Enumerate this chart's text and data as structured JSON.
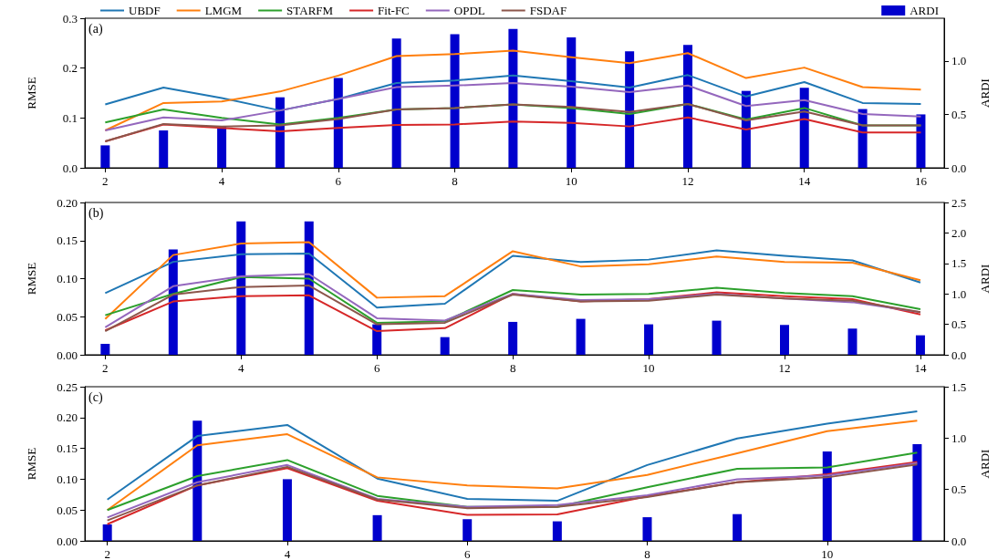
{
  "chart_data": [
    {
      "type": "line",
      "annotations": [
        "(a)"
      ],
      "ylabel": "RMSE",
      "y2label": "ARDI",
      "legend": "top",
      "grid": false,
      "x": [
        2,
        3,
        4,
        5,
        6,
        7,
        8,
        9,
        10,
        11,
        12,
        13,
        14,
        15,
        16
      ],
      "xlim": [
        1.65,
        16.4
      ],
      "xticks": [
        2,
        4,
        6,
        8,
        10,
        12,
        14,
        16
      ],
      "ylim": [
        0,
        0.3
      ],
      "yticks": [
        {
          "value": 0,
          "label": "0.0"
        },
        0.1,
        0.2,
        0.3
      ],
      "y2lim": [
        0,
        1.4
      ],
      "y2ticks": [
        {
          "value": 0,
          "label": "0.0"
        },
        0.5,
        {
          "value": 1,
          "label": "1.0"
        }
      ],
      "series": [
        {
          "name": "UBDF",
          "color": "#1f77b4",
          "values": [
            0.127,
            0.161,
            0.14,
            0.115,
            0.138,
            0.17,
            0.175,
            0.185,
            0.174,
            0.161,
            0.186,
            0.143,
            0.172,
            0.13,
            0.128
          ]
        },
        {
          "name": "LMGM",
          "color": "#ff7f0e",
          "values": [
            0.075,
            0.13,
            0.133,
            0.153,
            0.185,
            0.224,
            0.228,
            0.235,
            0.222,
            0.21,
            0.23,
            0.18,
            0.201,
            0.162,
            0.157
          ]
        },
        {
          "name": "STARFM",
          "color": "#2ca02c",
          "values": [
            0.091,
            0.117,
            0.1,
            0.087,
            0.1,
            0.117,
            0.12,
            0.127,
            0.12,
            0.108,
            0.128,
            0.097,
            0.12,
            0.085,
            0.085
          ]
        },
        {
          "name": "Fit-FC",
          "color": "#d62728",
          "values": [
            0.053,
            0.087,
            0.08,
            0.073,
            0.08,
            0.086,
            0.087,
            0.093,
            0.09,
            0.083,
            0.101,
            0.077,
            0.098,
            0.071,
            0.071
          ]
        },
        {
          "name": "OPDL",
          "color": "#9467bd",
          "values": [
            0.075,
            0.101,
            0.095,
            0.115,
            0.138,
            0.162,
            0.165,
            0.17,
            0.163,
            0.152,
            0.165,
            0.124,
            0.136,
            0.108,
            0.103
          ]
        },
        {
          "name": "FSDAF",
          "color": "#8c564b",
          "values": [
            0.053,
            0.088,
            0.083,
            0.085,
            0.098,
            0.117,
            0.12,
            0.127,
            0.122,
            0.112,
            0.128,
            0.095,
            0.113,
            0.085,
            0.085
          ]
        },
        {
          "name": "ARDI",
          "type": "bar",
          "axis": "y2",
          "color": "#0000cd",
          "values": [
            0.21,
            0.35,
            0.39,
            0.66,
            0.84,
            1.21,
            1.25,
            1.3,
            1.22,
            1.09,
            1.15,
            0.72,
            0.75,
            0.55,
            0.5
          ]
        }
      ]
    },
    {
      "type": "line",
      "annotations": [
        "(b)"
      ],
      "ylabel": "RMSE",
      "y2label": "ARDI",
      "grid": false,
      "x": [
        2,
        3,
        4,
        5,
        6,
        7,
        8,
        9,
        10,
        11,
        12,
        13,
        14
      ],
      "xlim": [
        1.7,
        14.35
      ],
      "xticks": [
        2,
        4,
        6,
        8,
        10,
        12,
        14
      ],
      "ylim": [
        0,
        0.2
      ],
      "yticks": [
        {
          "value": 0,
          "label": "0.00"
        },
        0.05,
        {
          "value": 0.1,
          "label": "0.10"
        },
        0.15,
        {
          "value": 0.2,
          "label": "0.20"
        }
      ],
      "y2lim": [
        0,
        2.5
      ],
      "y2ticks": [
        {
          "value": 0,
          "label": "0.0"
        },
        0.5,
        {
          "value": 1,
          "label": "1.0"
        },
        1.5,
        {
          "value": 2,
          "label": "2.0"
        },
        2.5
      ],
      "series": [
        {
          "color": "#1f77b4",
          "values": [
            0.081,
            0.122,
            0.132,
            0.133,
            0.062,
            0.067,
            0.13,
            0.122,
            0.125,
            0.137,
            0.13,
            0.124,
            0.095
          ]
        },
        {
          "color": "#ff7f0e",
          "values": [
            0.047,
            0.131,
            0.146,
            0.148,
            0.075,
            0.077,
            0.136,
            0.116,
            0.119,
            0.129,
            0.122,
            0.121,
            0.098
          ]
        },
        {
          "color": "#2ca02c",
          "values": [
            0.052,
            0.08,
            0.102,
            0.1,
            0.042,
            0.044,
            0.085,
            0.079,
            0.08,
            0.088,
            0.081,
            0.077,
            0.06
          ]
        },
        {
          "color": "#d62728",
          "values": [
            0.032,
            0.07,
            0.077,
            0.078,
            0.031,
            0.035,
            0.08,
            0.07,
            0.073,
            0.082,
            0.077,
            0.073,
            0.053
          ]
        },
        {
          "color": "#9467bd",
          "values": [
            0.036,
            0.09,
            0.103,
            0.106,
            0.048,
            0.045,
            0.08,
            0.072,
            0.073,
            0.08,
            0.074,
            0.069,
            0.056
          ]
        },
        {
          "color": "#8c564b",
          "values": [
            0.031,
            0.079,
            0.089,
            0.091,
            0.04,
            0.042,
            0.079,
            0.07,
            0.071,
            0.079,
            0.074,
            0.071,
            0.056
          ]
        },
        {
          "type": "bar",
          "axis": "y2",
          "color": "#0000cd",
          "values": [
            0.18,
            1.73,
            2.19,
            2.19,
            0.5,
            0.29,
            0.54,
            0.59,
            0.5,
            0.56,
            0.49,
            0.43,
            0.32
          ]
        }
      ]
    },
    {
      "type": "line",
      "annotations": [
        "(c)"
      ],
      "ylabel": "RMSE",
      "y2label": "ARDI",
      "grid": false,
      "x": [
        2,
        3,
        4,
        5,
        6,
        7,
        8,
        9,
        10,
        11
      ],
      "xlim": [
        1.75,
        11.3
      ],
      "xticks": [
        2,
        4,
        6,
        8,
        10
      ],
      "ylim": [
        0,
        0.25
      ],
      "yticks": [
        {
          "value": 0,
          "label": "0.00"
        },
        0.05,
        {
          "value": 0.1,
          "label": "0.10"
        },
        0.15,
        {
          "value": 0.2,
          "label": "0.20"
        },
        0.25
      ],
      "y2lim": [
        0,
        1.5
      ],
      "y2ticks": [
        {
          "value": 0,
          "label": "0.0"
        },
        0.5,
        {
          "value": 1,
          "label": "1.0"
        },
        1.5
      ],
      "series": [
        {
          "color": "#1f77b4",
          "values": [
            0.067,
            0.17,
            0.188,
            0.101,
            0.068,
            0.065,
            0.123,
            0.166,
            0.19,
            0.21
          ]
        },
        {
          "color": "#ff7f0e",
          "values": [
            0.05,
            0.155,
            0.173,
            0.103,
            0.09,
            0.085,
            0.107,
            0.142,
            0.178,
            0.195
          ]
        },
        {
          "color": "#2ca02c",
          "values": [
            0.05,
            0.105,
            0.131,
            0.073,
            0.055,
            0.055,
            0.087,
            0.117,
            0.119,
            0.143
          ]
        },
        {
          "color": "#d62728",
          "values": [
            0.027,
            0.09,
            0.118,
            0.065,
            0.042,
            0.043,
            0.072,
            0.095,
            0.108,
            0.128
          ]
        },
        {
          "color": "#9467bd",
          "values": [
            0.038,
            0.095,
            0.123,
            0.068,
            0.055,
            0.058,
            0.074,
            0.1,
            0.106,
            0.126
          ]
        },
        {
          "color": "#8c564b",
          "values": [
            0.033,
            0.09,
            0.12,
            0.067,
            0.053,
            0.055,
            0.071,
            0.095,
            0.103,
            0.124
          ]
        },
        {
          "type": "bar",
          "axis": "y2",
          "color": "#0000cd",
          "values": [
            0.16,
            1.17,
            0.6,
            0.25,
            0.21,
            0.19,
            0.23,
            0.26,
            0.87,
            0.94
          ]
        }
      ]
    }
  ]
}
